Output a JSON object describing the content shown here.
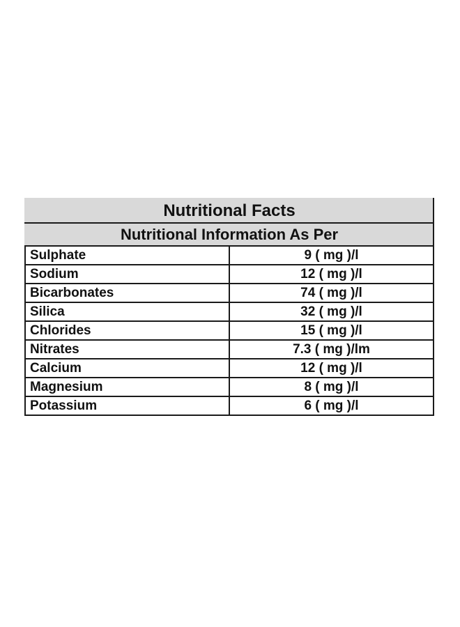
{
  "table": {
    "title": "Nutritional Facts",
    "subtitle": "Nutritional Information As Per",
    "rows": [
      {
        "name": "Sulphate",
        "value": "9 ( mg )/l"
      },
      {
        "name": "Sodium",
        "value": "12 ( mg )/l"
      },
      {
        "name": "Bicarbonates",
        "value": "74 ( mg )/l"
      },
      {
        "name": "Silica",
        "value": "32 ( mg )/l"
      },
      {
        "name": "Chlorides",
        "value": "15 ( mg )/l"
      },
      {
        "name": "Nitrates",
        "value": "7.3 ( mg )/lm"
      },
      {
        "name": "Calcium",
        "value": "12 ( mg )/l"
      },
      {
        "name": "Magnesium",
        "value": "8 ( mg )/l"
      },
      {
        "name": "Potassium",
        "value": "6 ( mg )/l"
      }
    ]
  }
}
